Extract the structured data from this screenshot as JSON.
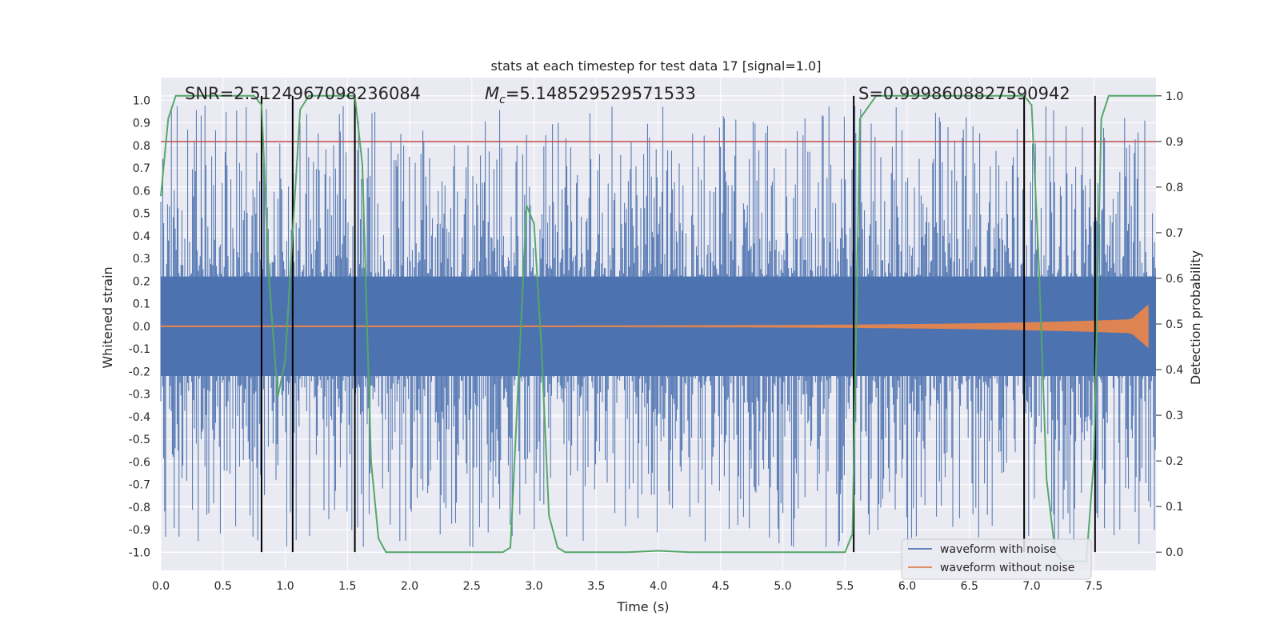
{
  "chart_data": {
    "type": "line",
    "title": "stats at each timestep for test data 17 [signal=1.0]",
    "xlabel": "Time (s)",
    "ylabel": "Whitened strain",
    "y2label": "Detection probability",
    "xlim": [
      0.0,
      8.0
    ],
    "ylim": [
      -1.08,
      1.1
    ],
    "y2lim": [
      -0.04,
      1.04
    ],
    "x_ticks": [
      "0.0",
      "0.5",
      "1.0",
      "1.5",
      "2.0",
      "2.5",
      "3.0",
      "3.5",
      "4.0",
      "4.5",
      "5.0",
      "5.5",
      "6.0",
      "6.5",
      "7.0",
      "7.5"
    ],
    "y_ticks": [
      "-1.0",
      "-0.9",
      "-0.8",
      "-0.7",
      "-0.6",
      "-0.5",
      "-0.4",
      "-0.3",
      "-0.2",
      "-0.1",
      "0.0",
      "0.1",
      "0.2",
      "0.3",
      "0.4",
      "0.5",
      "0.6",
      "0.7",
      "0.8",
      "0.9",
      "1.0"
    ],
    "y2_ticks": [
      "0.0",
      "0.1",
      "0.2",
      "0.3",
      "0.4",
      "0.5",
      "0.6",
      "0.7",
      "0.8",
      "0.9",
      "1.0"
    ],
    "annotations": {
      "snr": "SNR=2.5124967098236084",
      "mc_symbol": "M",
      "mc_sub": "c",
      "mc_value": "=5.148529529571533",
      "s": "S=0.9998608827590942"
    },
    "threshold": {
      "y2": 0.9,
      "color": "#c44e52"
    },
    "vertical_lines_x": [
      0.81,
      1.06,
      1.56,
      5.57,
      6.94,
      7.51
    ],
    "series": [
      {
        "name": "waveform with noise",
        "color": "#4c72b0"
      },
      {
        "name": "waveform without noise",
        "color": "#dd8452"
      },
      {
        "name": "detection probability",
        "color": "#55a868",
        "x": [
          0.0,
          0.06,
          0.12,
          0.25,
          0.5,
          0.75,
          0.81,
          0.87,
          0.94,
          1.0,
          1.06,
          1.12,
          1.19,
          1.25,
          1.5,
          1.56,
          1.62,
          1.69,
          1.75,
          1.81,
          2.0,
          2.5,
          2.75,
          2.81,
          2.87,
          2.94,
          3.0,
          3.06,
          3.12,
          3.19,
          3.25,
          3.31,
          3.5,
          3.75,
          4.0,
          4.25,
          4.5,
          5.0,
          5.5,
          5.56,
          5.62,
          5.75,
          6.0,
          6.5,
          6.94,
          7.0,
          7.06,
          7.12,
          7.19,
          7.25,
          7.44,
          7.5,
          7.56,
          7.62,
          8.0
        ],
        "y": [
          0.78,
          0.95,
          1.0,
          1.0,
          1.0,
          1.0,
          0.98,
          0.6,
          0.34,
          0.42,
          0.7,
          0.97,
          1.0,
          1.0,
          1.0,
          1.0,
          0.85,
          0.2,
          0.03,
          0.0,
          0.0,
          0.0,
          0.0,
          0.01,
          0.35,
          0.76,
          0.72,
          0.45,
          0.08,
          0.01,
          0.0,
          0.0,
          0.0,
          0.0,
          0.003,
          0.0,
          0.0,
          0.0,
          0.0,
          0.04,
          0.95,
          1.0,
          1.0,
          1.0,
          1.0,
          0.98,
          0.62,
          0.16,
          0.0,
          -0.02,
          -0.02,
          0.2,
          0.95,
          1.0,
          1.0
        ]
      }
    ],
    "legend": {
      "placement": "lower-right",
      "entries": [
        "waveform with noise",
        "waveform without noise"
      ]
    }
  }
}
